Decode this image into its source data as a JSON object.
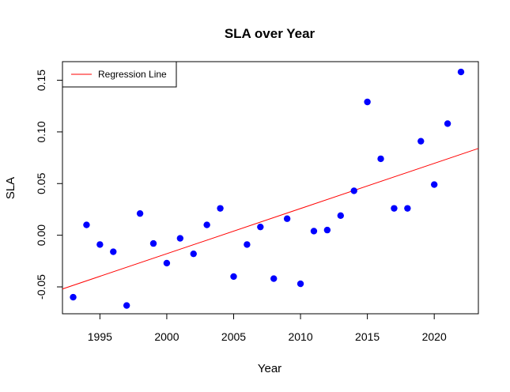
{
  "chart_data": {
    "type": "scatter",
    "title": "SLA over Year",
    "xlabel": "Year",
    "ylabel": "SLA",
    "xlim": [
      1992.2,
      2023.3
    ],
    "ylim": [
      -0.076,
      0.168
    ],
    "xticks": [
      1995,
      2000,
      2005,
      2010,
      2015,
      2020
    ],
    "yticks": [
      -0.05,
      0.0,
      0.05,
      0.1,
      0.15
    ],
    "ytick_labels": [
      "-0.05",
      "0.00",
      "0.05",
      "0.10",
      "0.15"
    ],
    "grid": false,
    "legend": {
      "position": "top-left",
      "entries": [
        "Regression Line"
      ]
    },
    "point_color": "#0000ff",
    "line_color": "#ff0000",
    "series": [
      {
        "x": [
          1993,
          1994,
          1995,
          1996,
          1997,
          1998,
          1999,
          2000,
          2001,
          2002,
          2003,
          2004,
          2005,
          2006,
          2007,
          2008,
          2009,
          2010,
          2011,
          2012,
          2013,
          2014,
          2015,
          2016,
          2017,
          2018,
          2019,
          2020,
          2021,
          2022
        ],
        "y": [
          -0.06,
          0.01,
          -0.009,
          -0.016,
          -0.068,
          0.021,
          -0.008,
          -0.027,
          -0.003,
          -0.018,
          0.01,
          0.026,
          -0.04,
          -0.009,
          0.008,
          -0.042,
          0.016,
          -0.047,
          0.004,
          0.005,
          0.019,
          0.043,
          0.129,
          0.074,
          0.026,
          0.026,
          0.091,
          0.049,
          0.108,
          0.158
        ]
      }
    ],
    "regression": {
      "name": "Regression Line",
      "x": [
        1992.2,
        2023.3
      ],
      "y": [
        -0.052,
        0.084
      ]
    }
  }
}
